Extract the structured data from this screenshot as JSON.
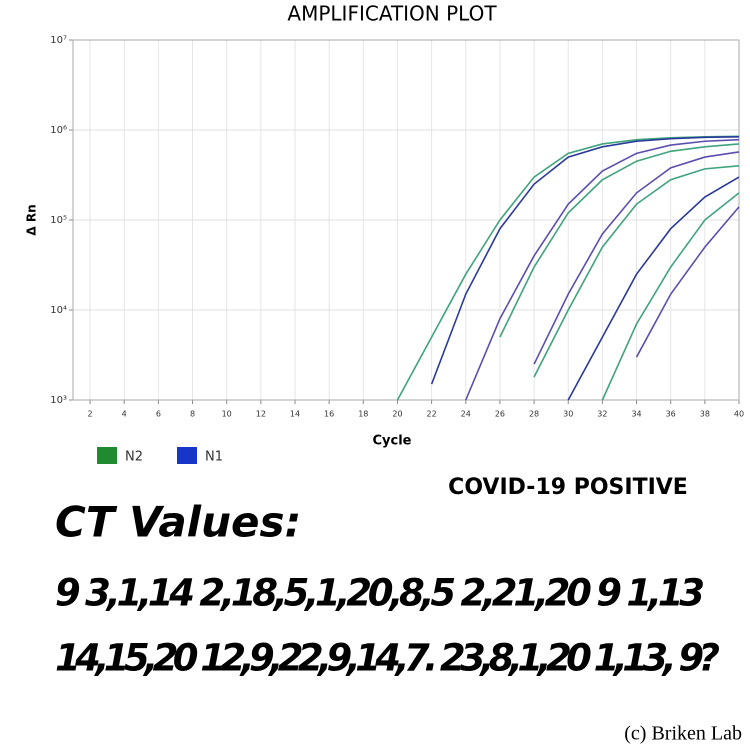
{
  "chart_data": {
    "type": "line",
    "title": "AMPLIFICATION PLOT",
    "x_label": "Cycle",
    "y_label": "Δ Rn",
    "log_y": true,
    "grid": true,
    "x": [
      20,
      22,
      24,
      26,
      28,
      30,
      32,
      34,
      36,
      38,
      40
    ],
    "xlim": [
      1,
      40
    ],
    "xticks": [
      2,
      4,
      6,
      8,
      10,
      12,
      14,
      16,
      18,
      20,
      22,
      24,
      26,
      28,
      30,
      32,
      34,
      36,
      38,
      40
    ],
    "ylim": [
      1000,
      10000000
    ],
    "yticks": [
      {
        "value": 1000,
        "label": "10³"
      },
      {
        "value": 10000,
        "label": "10⁴"
      },
      {
        "value": 100000,
        "label": "10⁵"
      },
      {
        "value": 1000000,
        "label": "10⁶"
      },
      {
        "value": 10000000,
        "label": "10⁷"
      }
    ],
    "legend_colors": {
      "N1": "#1536c8",
      "N2": "#1f8a2e"
    },
    "series": [
      {
        "name": "N2",
        "color": "#3fa37c",
        "values": [
          1000,
          5000,
          25000,
          100000,
          300000,
          550000,
          700000,
          780000,
          820000,
          840000,
          850000
        ]
      },
      {
        "name": "N1",
        "color": "#2a3a9a",
        "values": [
          null,
          1500,
          15000,
          80000,
          250000,
          500000,
          650000,
          750000,
          800000,
          830000,
          840000
        ]
      },
      {
        "name": "N1",
        "color": "#5a4fb0",
        "values": [
          null,
          null,
          1000,
          8000,
          40000,
          150000,
          350000,
          550000,
          680000,
          750000,
          780000
        ]
      },
      {
        "name": "N2",
        "color": "#3fa37c",
        "values": [
          null,
          null,
          null,
          5000,
          30000,
          120000,
          280000,
          450000,
          580000,
          650000,
          700000
        ]
      },
      {
        "name": "N1",
        "color": "#5a4fb0",
        "values": [
          null,
          null,
          null,
          null,
          2500,
          15000,
          70000,
          200000,
          380000,
          500000,
          570000
        ]
      },
      {
        "name": "N2",
        "color": "#3fa37c",
        "values": [
          null,
          null,
          null,
          null,
          1800,
          10000,
          50000,
          150000,
          280000,
          370000,
          400000
        ]
      },
      {
        "name": "N1",
        "color": "#2a3a9a",
        "values": [
          null,
          null,
          null,
          null,
          null,
          1000,
          5000,
          25000,
          80000,
          180000,
          300000
        ]
      },
      {
        "name": "N2",
        "color": "#3fa37c",
        "values": [
          null,
          null,
          null,
          null,
          null,
          null,
          1000,
          7000,
          30000,
          100000,
          200000
        ]
      },
      {
        "name": "N1",
        "color": "#5a4fb0",
        "values": [
          null,
          null,
          null,
          null,
          null,
          null,
          null,
          3000,
          15000,
          50000,
          140000
        ]
      }
    ],
    "annotations": [
      "COVID-19 POSITIVE",
      "CT Values:",
      "9  3,1,14  2,18,5,1,20,8,5 2,21,20 9 1,13",
      "14,15,20 12,9,22,9,14,7. 23,8,1,20 1,13, 9?",
      "(c) Briken Lab"
    ]
  }
}
